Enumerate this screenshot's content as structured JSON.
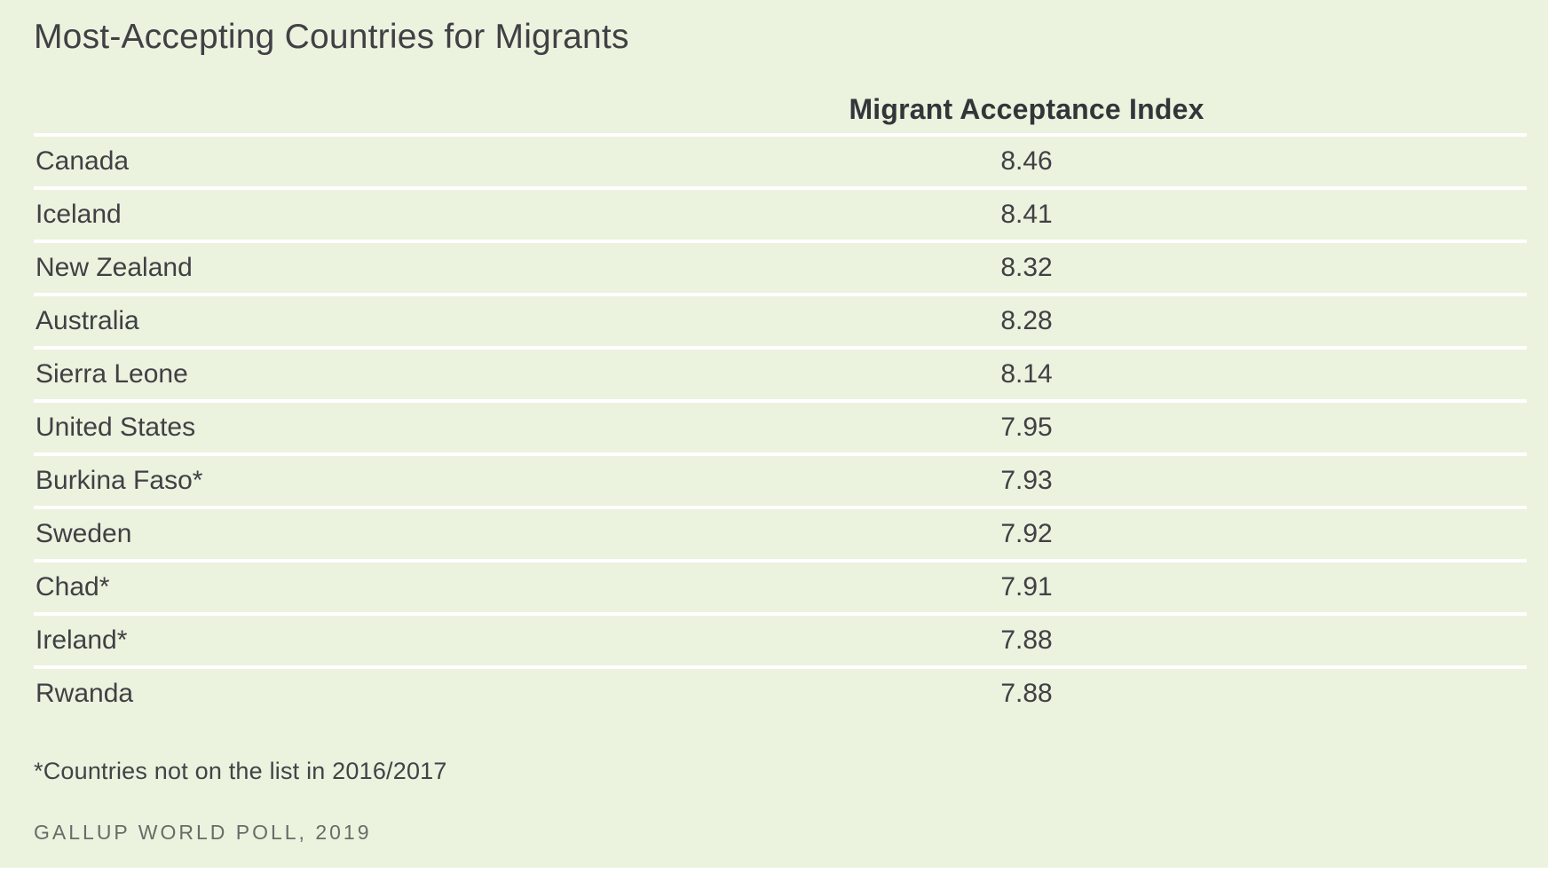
{
  "page": {
    "title": "Most-Accepting Countries for Migrants",
    "footnote": "*Countries not on the list in 2016/2017",
    "source": "GALLUP WORLD POLL, 2019"
  },
  "colors": {
    "background": "#ebf2de",
    "separator": "#ffffff",
    "title_text": "#3f4144",
    "header_text": "#333639",
    "row_text": "#3f4144",
    "source_text": "#676d67"
  },
  "chart_data": {
    "type": "table",
    "title": "Most-Accepting Countries for Migrants",
    "value_column_header": "Migrant Acceptance Index",
    "rows": [
      {
        "country": "Canada",
        "value": "8.46"
      },
      {
        "country": "Iceland",
        "value": "8.41"
      },
      {
        "country": "New Zealand",
        "value": "8.32"
      },
      {
        "country": "Australia",
        "value": "8.28"
      },
      {
        "country": "Sierra Leone",
        "value": "8.14"
      },
      {
        "country": "United States",
        "value": "7.95"
      },
      {
        "country": "Burkina Faso*",
        "value": "7.93"
      },
      {
        "country": "Sweden",
        "value": "7.92"
      },
      {
        "country": "Chad*",
        "value": "7.91"
      },
      {
        "country": "Ireland*",
        "value": "7.88"
      },
      {
        "country": "Rwanda",
        "value": "7.88"
      }
    ],
    "footnote": "*Countries not on the list in 2016/2017",
    "source": "GALLUP WORLD POLL, 2019"
  }
}
